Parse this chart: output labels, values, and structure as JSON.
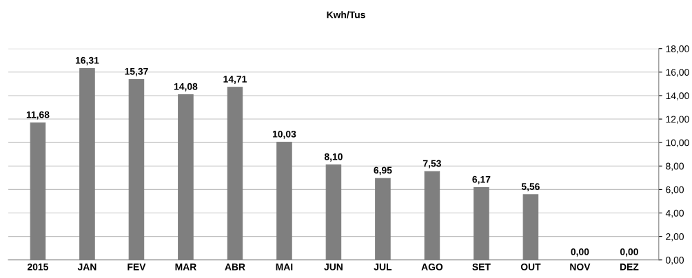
{
  "chart_data": {
    "type": "bar",
    "title": "Kwh/Tus",
    "categories": [
      "2015",
      "JAN",
      "FEV",
      "MAR",
      "ABR",
      "MAI",
      "JUN",
      "JUL",
      "AGO",
      "SET",
      "OUT",
      "NOV",
      "DEZ"
    ],
    "values": [
      11.68,
      16.31,
      15.37,
      14.08,
      14.71,
      10.03,
      8.1,
      6.95,
      7.53,
      6.17,
      5.56,
      0,
      0
    ],
    "value_labels": [
      "11,68",
      "16,31",
      "15,37",
      "14,08",
      "14,71",
      "10,03",
      "8,10",
      "6,95",
      "7,53",
      "6,17",
      "5,56",
      "0,00",
      "0,00"
    ],
    "color": "#7f7f7f",
    "ylim": [
      0,
      18
    ],
    "yticks": [
      {
        "value": 0,
        "label": "0,00"
      },
      {
        "value": 2,
        "label": "2,00"
      },
      {
        "value": 4,
        "label": "4,00"
      },
      {
        "value": 6,
        "label": "6,00"
      },
      {
        "value": 8,
        "label": "8,00"
      },
      {
        "value": 10,
        "label": "10,00"
      },
      {
        "value": 12,
        "label": "12,00"
      },
      {
        "value": 14,
        "label": "14,00"
      },
      {
        "value": 16,
        "label": "16,00"
      },
      {
        "value": 18,
        "label": "18,00"
      }
    ],
    "grid": "y"
  }
}
